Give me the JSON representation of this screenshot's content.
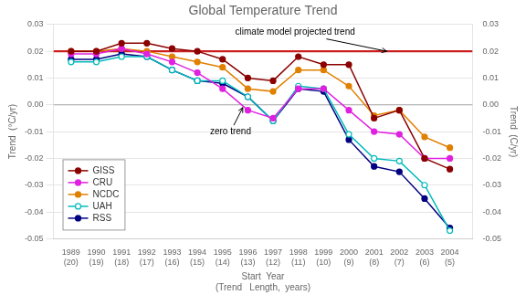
{
  "chart_data": {
    "type": "line",
    "title": "Global Temperature Trend",
    "x_label": "Start  Year\n(Trend   Length,  years)",
    "y_label": "Trend  (°C/yr)",
    "y2_label": "Trend  (C/yr)",
    "x": [
      1989,
      1990,
      1991,
      1992,
      1993,
      1994,
      1995,
      1996,
      1997,
      1998,
      1999,
      2000,
      2001,
      2002,
      2003,
      2004
    ],
    "xlim": [
      1988.3,
      2004.9
    ],
    "xticks": [
      {
        "value": 1989,
        "label": "1989\n(20)"
      },
      {
        "value": 1990,
        "label": "1990\n(19)"
      },
      {
        "value": 1991,
        "label": "1991\n(18)"
      },
      {
        "value": 1992,
        "label": "1992\n(17)"
      },
      {
        "value": 1993,
        "label": "1993\n(16)"
      },
      {
        "value": 1994,
        "label": "1994\n(15)"
      },
      {
        "value": 1995,
        "label": "1995\n(14)"
      },
      {
        "value": 1996,
        "label": "1996\n(13)"
      },
      {
        "value": 1997,
        "label": "1997\n(12)"
      },
      {
        "value": 1998,
        "label": "1998\n(11)"
      },
      {
        "value": 1999,
        "label": "1999\n(10)"
      },
      {
        "value": 2000,
        "label": "2000\n(9)"
      },
      {
        "value": 2001,
        "label": "2001\n(8)"
      },
      {
        "value": 2002,
        "label": "2002\n(7)"
      },
      {
        "value": 2003,
        "label": "2003\n(6)"
      },
      {
        "value": 2004,
        "label": "2004\n(5)"
      }
    ],
    "ylim": [
      -0.05,
      0.03
    ],
    "yticks": [
      -0.05,
      -0.04,
      -0.03,
      -0.02,
      -0.01,
      {
        "value": 0.0,
        "label": "0.00"
      },
      0.01,
      0.02,
      0.03
    ],
    "y2lim": [
      -0.05,
      0.03
    ],
    "y2ticks": [
      -0.05,
      -0.04,
      -0.03,
      -0.02,
      -0.01,
      {
        "value": 0.0,
        "label": "0.00"
      },
      0.01,
      0.02,
      0.03
    ],
    "grid": "y",
    "legend": "lower left",
    "series": [
      {
        "name": "GISS",
        "color": "#8b0000",
        "marker": "circle",
        "values": [
          0.02,
          0.02,
          0.023,
          0.023,
          0.021,
          0.02,
          0.017,
          0.01,
          0.009,
          0.018,
          0.015,
          0.015,
          -0.005,
          -0.002,
          -0.02,
          -0.024
        ]
      },
      {
        "name": "CRU",
        "color": "#e020e0",
        "marker": "circle",
        "values": [
          0.019,
          0.019,
          0.021,
          0.019,
          0.016,
          0.012,
          0.006,
          -0.002,
          -0.005,
          0.006,
          0.006,
          -0.002,
          -0.01,
          -0.011,
          -0.02,
          -0.02
        ]
      },
      {
        "name": "NCDC",
        "color": "#e08000",
        "marker": "circle",
        "values": [
          0.02,
          0.02,
          0.021,
          0.02,
          0.018,
          0.016,
          0.014,
          0.006,
          0.005,
          0.013,
          0.013,
          0.007,
          -0.004,
          -0.002,
          -0.012,
          -0.016
        ]
      },
      {
        "name": "UAH",
        "color": "#00bbbb",
        "marker": "open_circle",
        "values": [
          0.016,
          0.016,
          0.018,
          0.018,
          0.013,
          0.009,
          0.009,
          0.003,
          -0.006,
          0.007,
          0.006,
          -0.011,
          -0.02,
          -0.021,
          -0.03,
          -0.047
        ]
      },
      {
        "name": "RSS",
        "color": "#000080",
        "marker": "circle",
        "values": [
          0.017,
          0.017,
          0.019,
          0.018,
          0.013,
          0.009,
          0.008,
          0.003,
          -0.006,
          0.006,
          0.005,
          -0.013,
          -0.023,
          -0.025,
          -0.035,
          -0.046
        ]
      }
    ],
    "hlines": [
      {
        "value": 0.02,
        "color": "#cc2020"
      },
      {
        "value": 0,
        "color": "#aaaaaa"
      }
    ],
    "annotations": [
      {
        "text": "climate model projected trend",
        "x": 1995.5,
        "y": 0.027,
        "arrow_x": 2001.5,
        "arrow_y": 0.02
      },
      {
        "text": "zero trend",
        "x": 1994.5,
        "y": -0.01,
        "arrow_x": 1995.8,
        "arrow_y": -0.001
      }
    ]
  }
}
